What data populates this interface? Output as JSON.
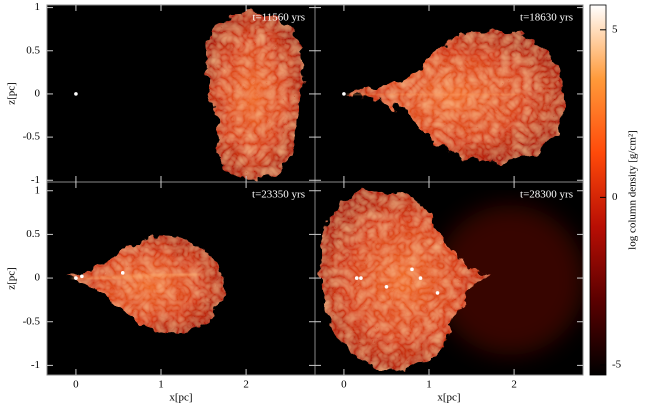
{
  "chart_data": {
    "type": "panel-grid",
    "xlabel": "x[pc]",
    "ylabel": "z[pc]",
    "xlim": [
      -0.34,
      2.81
    ],
    "xticks": [
      0,
      1,
      2
    ],
    "rows": [
      {
        "ylim": [
          -1.02,
          1.03
        ],
        "yticks": [
          -1,
          -0.5,
          0,
          0.5,
          1
        ],
        "panels": [
          {
            "annotation": "t=11560 yrs",
            "stars": {
              "x": [
                0
              ],
              "y": [
                0
              ]
            }
          },
          {
            "annotation": "t=18630 yrs",
            "stars": {
              "x": [
                0
              ],
              "y": [
                0
              ]
            }
          }
        ]
      },
      {
        "ylim": [
          -1.11,
          1.1
        ],
        "yticks": [
          -1,
          -0.5,
          0,
          0.5,
          1
        ],
        "panels": [
          {
            "annotation": "t=23350 yrs",
            "stars": {
              "x": [
                0,
                0.07,
                0.55
              ],
              "y": [
                0,
                0.02,
                0.06
              ]
            }
          },
          {
            "annotation": "t=28300 yrs",
            "stars": {
              "x": [
                0.15,
                0.2,
                0.5,
                0.8,
                0.9,
                1.1
              ],
              "y": [
                0,
                0,
                -0.1,
                0.1,
                0,
                -0.17
              ]
            }
          }
        ]
      }
    ],
    "colorbar": {
      "label": "log column density [g/cm²]",
      "ylim": [
        -5.3,
        5.74
      ],
      "yticks": [
        -5,
        0,
        5
      ],
      "colors": [
        "#000000",
        "#5a0000",
        "#b80e04",
        "#ff4a0a",
        "#ff9a3a",
        "#ffffff"
      ]
    }
  }
}
